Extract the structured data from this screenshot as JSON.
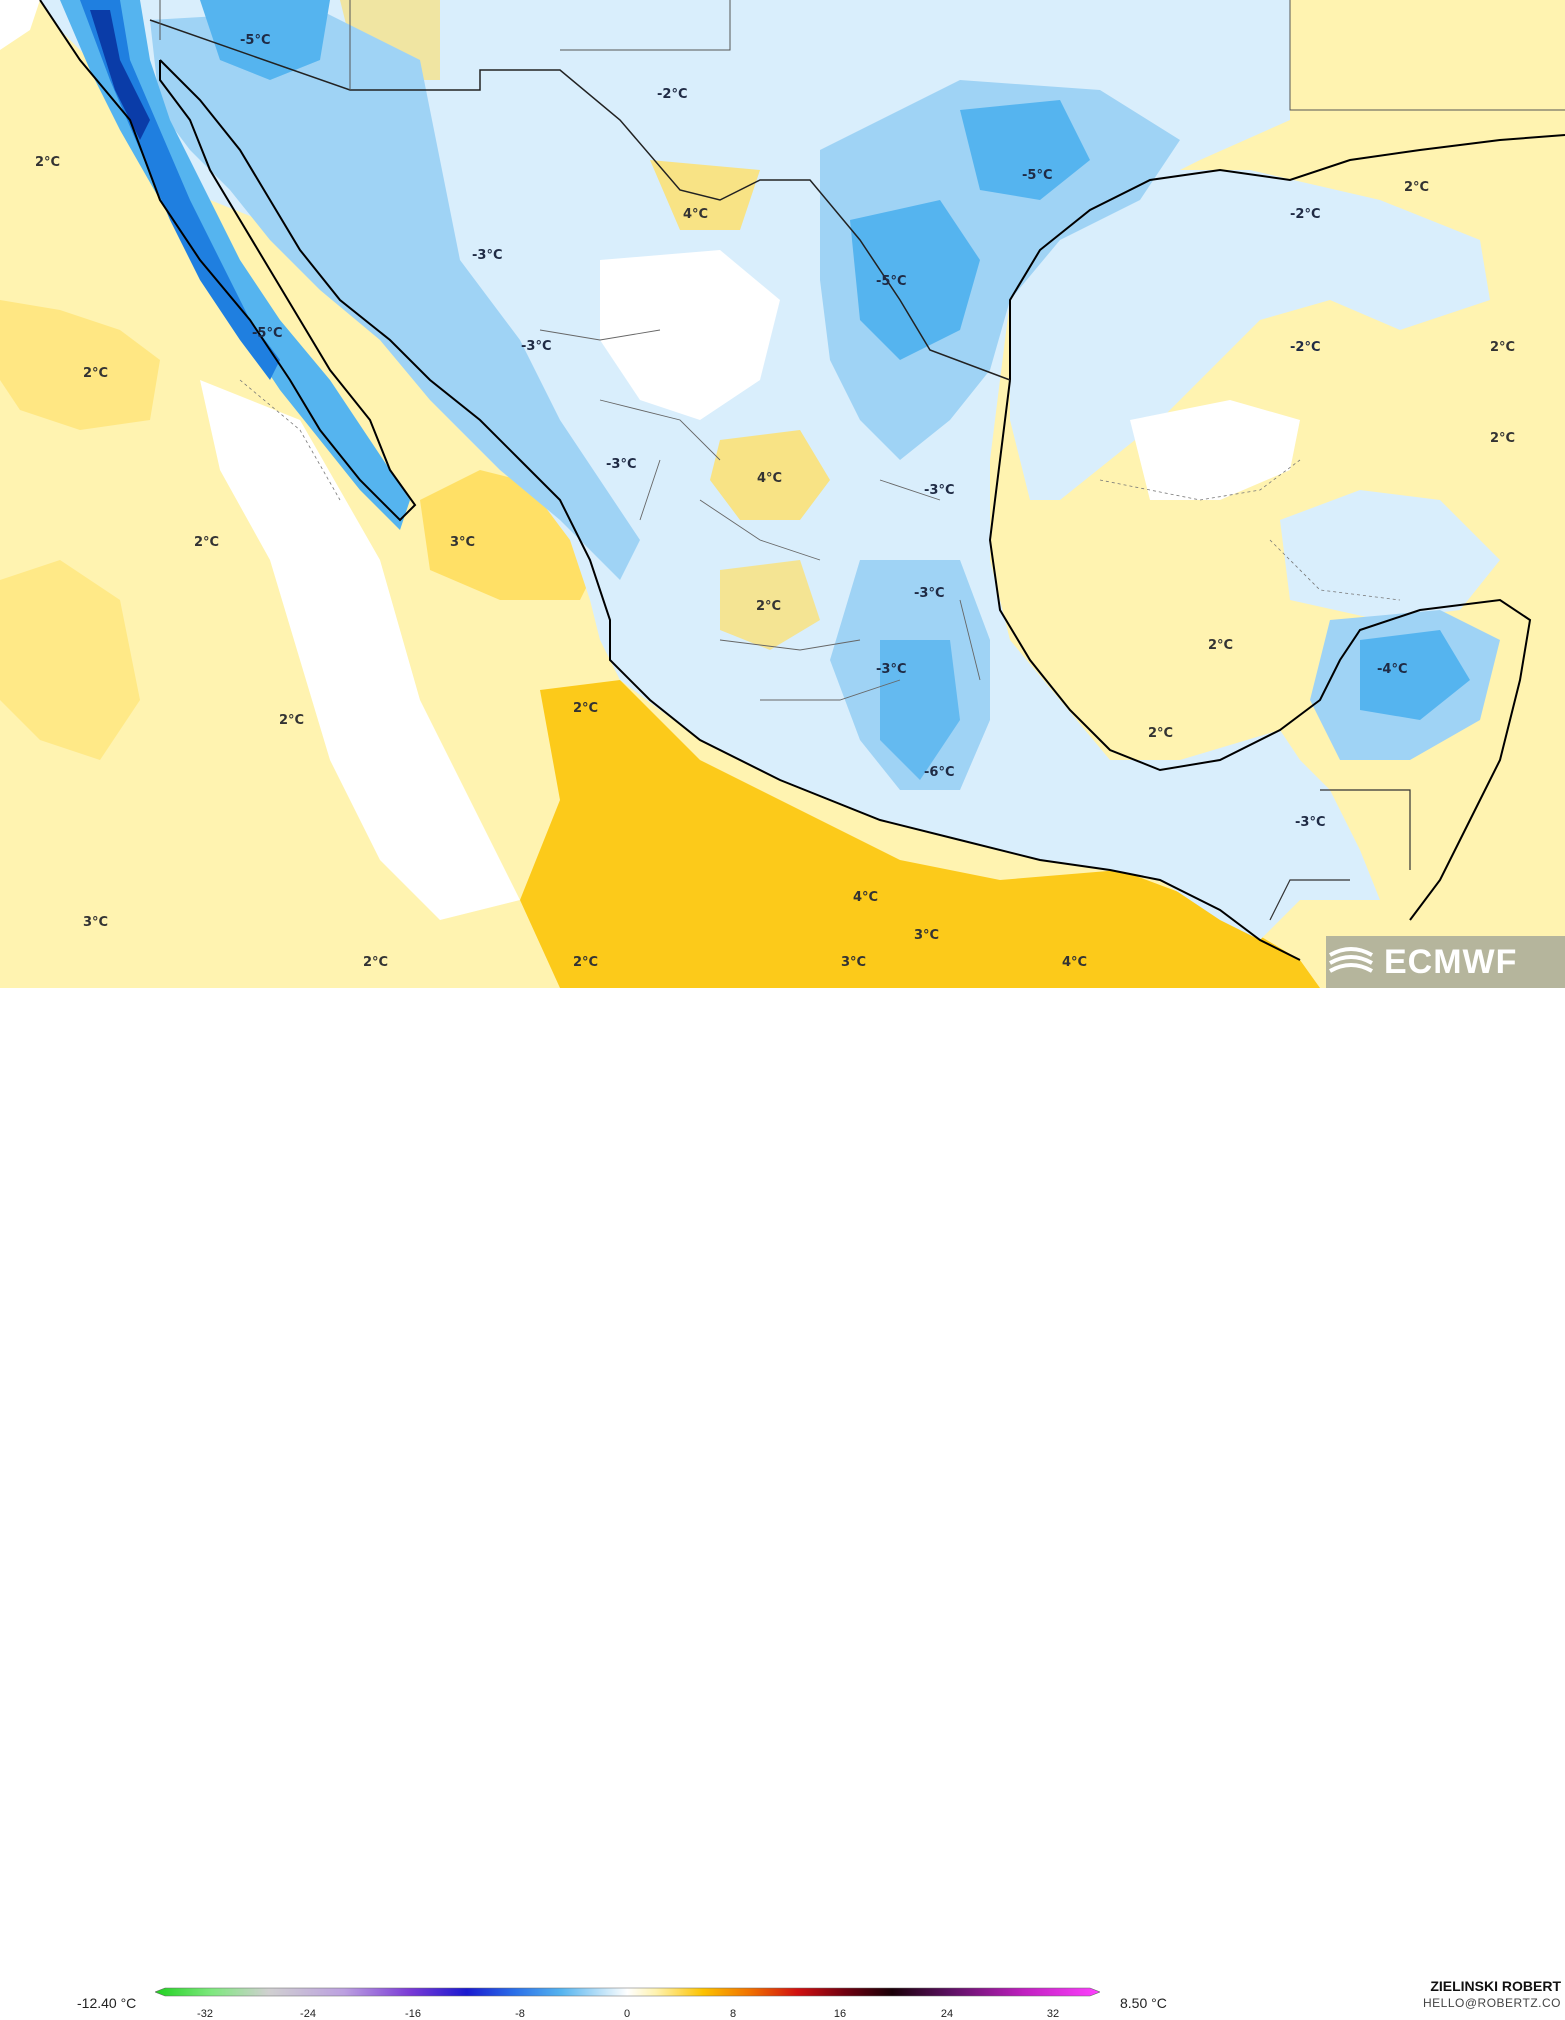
{
  "map": {
    "labels": [
      {
        "text": "-5°C"
      },
      {
        "text": "-2°C"
      },
      {
        "text": "-5°C"
      },
      {
        "text": "2°C"
      },
      {
        "text": "4°C"
      },
      {
        "text": "-2°C"
      },
      {
        "text": "-3°C"
      },
      {
        "text": "-5°C"
      },
      {
        "text": "-5°C"
      },
      {
        "text": "2°C"
      },
      {
        "text": "-3°C"
      },
      {
        "text": "-2°C"
      },
      {
        "text": "2°C"
      },
      {
        "text": "2°C"
      },
      {
        "text": "-3°C"
      },
      {
        "text": "4°C"
      },
      {
        "text": "-3°C"
      },
      {
        "text": "2°C"
      },
      {
        "text": "3°C"
      },
      {
        "text": "2°C"
      },
      {
        "text": "-3°C"
      },
      {
        "text": "2°C"
      },
      {
        "text": "-3°C"
      },
      {
        "text": "-4°C"
      },
      {
        "text": "2°C"
      },
      {
        "text": "2°C"
      },
      {
        "text": "-6°C"
      },
      {
        "text": "2°C"
      },
      {
        "text": "-3°C"
      },
      {
        "text": "3°C"
      },
      {
        "text": "4°C"
      },
      {
        "text": "3°C"
      },
      {
        "text": "2°C"
      },
      {
        "text": "2°C"
      },
      {
        "text": "3°C"
      },
      {
        "text": "4°C"
      }
    ]
  },
  "colorbar": {
    "min_label": "-12.40 °C",
    "max_label": "8.50 °C",
    "ticks": [
      "-32",
      "-24",
      "-16",
      "-8",
      "0",
      "8",
      "16",
      "24",
      "32"
    ]
  },
  "credit": {
    "name": "ZIELINSKI ROBERT",
    "email": "HELLO@ROBERTZ.CO"
  },
  "logo": {
    "text": "ECMWF"
  },
  "colors": {
    "warm_light": "#fff3b0",
    "warm": "#ffe066",
    "warm_strong": "#fcc200",
    "cold_light": "#d9eefc",
    "cold": "#9fd3f5",
    "cold_mid": "#55b4ef",
    "cold_strong": "#1f7fe0",
    "cold_deep": "#0a3ca8",
    "coast": "#000000",
    "border": "#555555"
  }
}
